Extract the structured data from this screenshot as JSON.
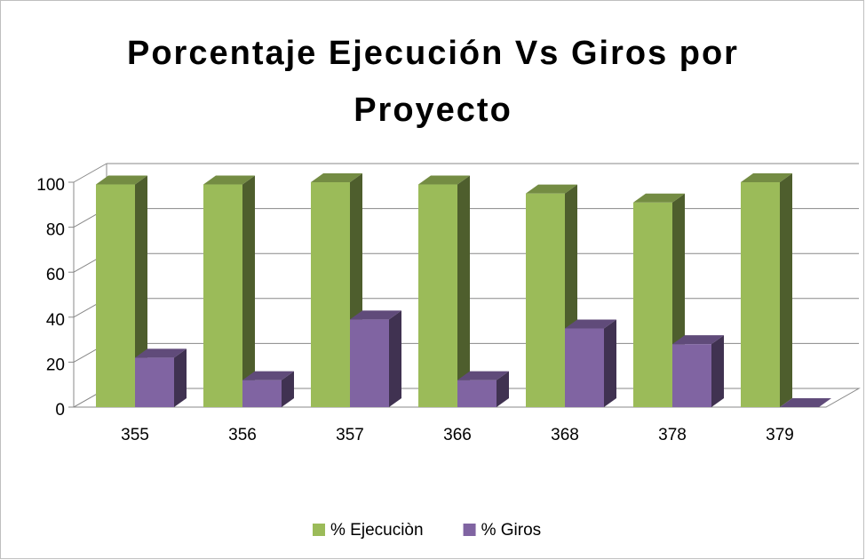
{
  "chart_data": {
    "type": "bar3d",
    "title": "Porcentaje Ejecución Vs Giros por Proyecto",
    "categories": [
      "355",
      "356",
      "357",
      "366",
      "368",
      "378",
      "379"
    ],
    "series": [
      {
        "name": "% Ejecuciòn",
        "color": "#9bbb59",
        "values": [
          99,
          99,
          100,
          99,
          95,
          91,
          100
        ]
      },
      {
        "name": "% Giros",
        "color": "#8064a2",
        "values": [
          22,
          12,
          39,
          12,
          35,
          28,
          0
        ]
      }
    ],
    "ylim": [
      0,
      100
    ],
    "yticks": [
      0,
      20,
      40,
      60,
      80,
      100
    ],
    "grid": true,
    "legend": "bottom"
  }
}
